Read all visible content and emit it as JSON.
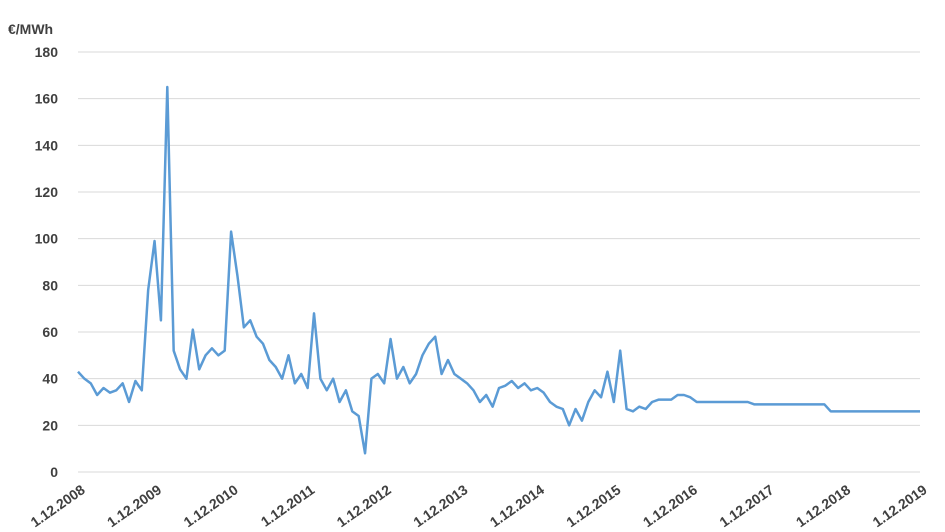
{
  "chart_data": {
    "type": "line",
    "y_label": "€/MWh",
    "categories": [
      "1.12.2008",
      null,
      null,
      null,
      null,
      null,
      null,
      null,
      null,
      null,
      null,
      null,
      "1.12.2009",
      null,
      null,
      null,
      null,
      null,
      null,
      null,
      null,
      null,
      null,
      null,
      "1.12.2010",
      null,
      null,
      null,
      null,
      null,
      null,
      null,
      null,
      null,
      null,
      null,
      "1.12.2011",
      null,
      null,
      null,
      null,
      null,
      null,
      null,
      null,
      null,
      null,
      null,
      "1.12.2012",
      null,
      null,
      null,
      null,
      null,
      null,
      null,
      null,
      null,
      null,
      null,
      "1.12.2013",
      null,
      null,
      null,
      null,
      null,
      null,
      null,
      null,
      null,
      null,
      null,
      "1.12.2014",
      null,
      null,
      null,
      null,
      null,
      null,
      null,
      null,
      null,
      null,
      null,
      "1.12.2015",
      null,
      null,
      null,
      null,
      null,
      null,
      null,
      null,
      null,
      null,
      null,
      "1.12.2016",
      null,
      null,
      null,
      null,
      null,
      null,
      null,
      null,
      null,
      null,
      null,
      "1.12.2017",
      null,
      null,
      null,
      null,
      null,
      null,
      null,
      null,
      null,
      null,
      null,
      "1.12.2018",
      null,
      null,
      null,
      null,
      null,
      null,
      null,
      null,
      null,
      null,
      null,
      "1.12.2019"
    ],
    "series": [
      {
        "color": "#5b9bd5",
        "values": [
          43,
          40,
          38,
          33,
          36,
          34,
          35,
          38,
          30,
          39,
          35,
          78,
          99,
          65,
          165,
          52,
          44,
          40,
          61,
          44,
          50,
          53,
          50,
          52,
          103,
          84,
          62,
          65,
          58,
          55,
          48,
          45,
          40,
          50,
          38,
          42,
          36,
          68,
          40,
          35,
          40,
          30,
          35,
          26,
          24,
          8,
          40,
          42,
          38,
          57,
          40,
          45,
          38,
          42,
          50,
          55,
          58,
          42,
          48,
          42,
          40,
          38,
          35,
          30,
          33,
          28,
          36,
          37,
          39,
          36,
          38,
          35,
          36,
          34,
          30,
          28,
          27,
          20,
          27,
          22,
          30,
          35,
          32,
          43,
          30,
          52,
          27,
          26,
          28,
          27,
          30,
          31,
          31,
          31,
          33,
          33,
          32,
          30,
          30,
          30,
          30,
          30,
          30,
          30,
          30,
          30,
          29,
          29,
          29,
          29,
          29,
          29,
          29,
          29,
          29,
          29,
          29,
          29,
          26,
          26,
          26,
          26,
          26,
          26,
          26,
          26,
          26,
          26,
          26,
          26,
          26,
          26,
          26
        ]
      }
    ],
    "ylim": [
      0,
      180
    ],
    "yticks": [
      0,
      20,
      40,
      60,
      80,
      100,
      120,
      140,
      160,
      180
    ],
    "grid": true
  }
}
